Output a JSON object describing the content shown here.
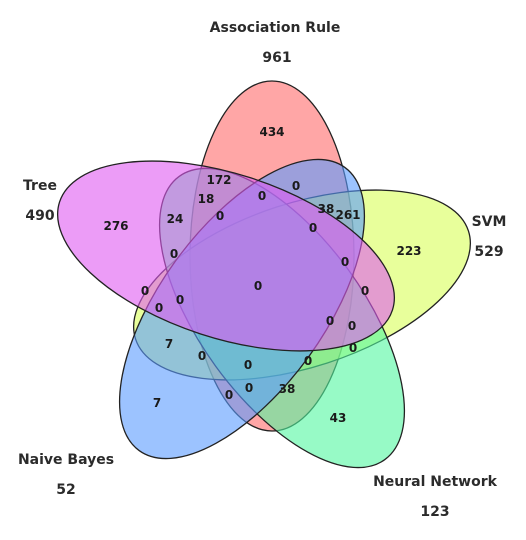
{
  "sets": [
    {
      "key": "association",
      "name": "Association Rule",
      "total": "961",
      "color": "#ff6b6b"
    },
    {
      "key": "svm",
      "name": "SVM",
      "total": "529",
      "color": "#d8ff59"
    },
    {
      "key": "neural",
      "name": "Neural Network",
      "total": "123",
      "color": "#52f7a0"
    },
    {
      "key": "bayes",
      "name": "Naive Bayes",
      "total": "52",
      "color": "#5a9bff"
    },
    {
      "key": "tree",
      "name": "Tree",
      "total": "490",
      "color": "#e05af2"
    }
  ],
  "regions": [
    "434",
    "261",
    "223",
    "0",
    "43",
    "38",
    "7",
    "0",
    "276",
    "172",
    "0",
    "0",
    "38",
    "0",
    "0",
    "0",
    "0",
    "0",
    "0",
    "0",
    "0",
    "18",
    "24",
    "0",
    "7",
    "0",
    "0",
    "0",
    "0",
    "0",
    "0"
  ]
}
